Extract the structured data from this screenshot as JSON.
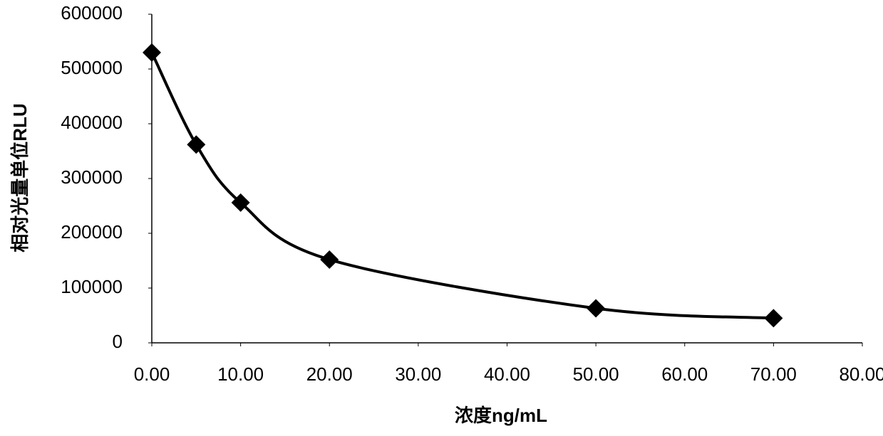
{
  "chart_data": {
    "type": "scatter",
    "smooth": true,
    "x_label": "浓度ng/mL",
    "y_label": "相对光量单位RLU",
    "x": [
      0,
      5,
      10,
      20,
      50,
      70
    ],
    "values": [
      530000,
      362000,
      256000,
      152000,
      63000,
      45000
    ],
    "color": "#000000",
    "xlim": [
      0,
      80
    ],
    "xticks": [
      {
        "value": 0,
        "label": "0.00"
      },
      {
        "value": 10,
        "label": "10.00"
      },
      {
        "value": 20,
        "label": "20.00"
      },
      {
        "value": 30,
        "label": "30.00"
      },
      {
        "value": 40,
        "label": "40.00"
      },
      {
        "value": 50,
        "label": "50.00"
      },
      {
        "value": 60,
        "label": "60.00"
      },
      {
        "value": 70,
        "label": "70.00"
      },
      {
        "value": 80,
        "label": "80.00"
      }
    ],
    "ylim": [
      0,
      600000
    ],
    "yticks": [
      0,
      100000,
      200000,
      300000,
      400000,
      500000,
      600000
    ],
    "grid": false
  }
}
